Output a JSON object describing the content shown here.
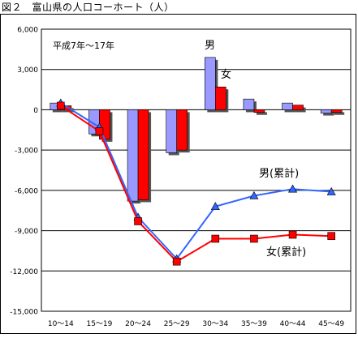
{
  "figure_title": "図２　富山県の人口コーホート（人）",
  "chart_data": {
    "type": "bar",
    "title": "図２　富山県の人口コーホート（人）",
    "subtitle": "平成7年～17年",
    "categories": [
      "10～14",
      "15～19",
      "20～24",
      "25～29",
      "30～34",
      "35～39",
      "40～44",
      "45～49"
    ],
    "ylim": [
      -15000,
      6000
    ],
    "yticks": [
      6000,
      3000,
      0,
      -3000,
      -6000,
      -9000,
      -12000,
      -15000
    ],
    "ytick_labels": [
      "6,000",
      "3,000",
      "0",
      "-3,000",
      "-6,000",
      "-9,000",
      "-12,000",
      "-15,000"
    ],
    "grid": true,
    "series": [
      {
        "name": "男",
        "kind": "bar",
        "color": "#9999ff",
        "values": [
          500,
          -1800,
          -6800,
          -3200,
          3900,
          800,
          500,
          -250
        ]
      },
      {
        "name": "女",
        "kind": "bar",
        "color": "#ff0000",
        "values": [
          300,
          -2200,
          -6700,
          -3000,
          1700,
          -200,
          350,
          -200
        ]
      },
      {
        "name": "男(累計)",
        "kind": "line",
        "color": "#3366ff",
        "marker": "triangle",
        "values": [
          500,
          -1300,
          -8000,
          -11100,
          -7200,
          -6400,
          -5900,
          -6100
        ]
      },
      {
        "name": "女(累計)",
        "kind": "line",
        "color": "#ff0000",
        "marker": "square",
        "values": [
          300,
          -1600,
          -8300,
          -11300,
          -9600,
          -9600,
          -9300,
          -9400
        ]
      }
    ]
  }
}
